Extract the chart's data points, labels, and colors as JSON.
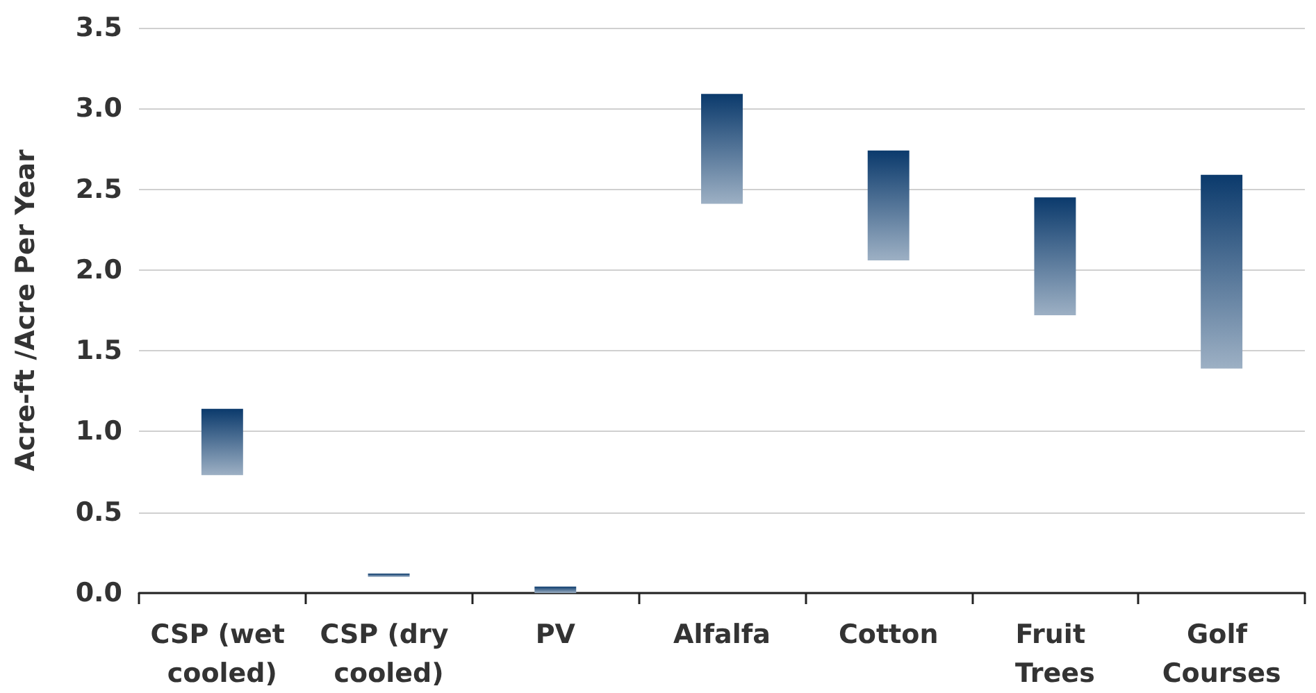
{
  "chart_data": {
    "type": "bar",
    "ylabel": "Acre-ft /Acre Per Year",
    "categories": [
      "CSP (wet cooled)",
      "CSP (dry cooled)",
      "PV",
      "Alfalfa",
      "Cotton",
      "Fruit Trees",
      "Golf Courses"
    ],
    "base": [
      0.73,
      0.1,
      0,
      2.41,
      2.06,
      1.72,
      1.39
    ],
    "values": [
      0.41,
      0.02,
      0.04,
      0.68,
      0.68,
      0.73,
      1.2
    ],
    "color": "#0b3a6c",
    "ylim": [
      0,
      3.5
    ],
    "yticks": [
      {
        "value": 0,
        "label": "0.0"
      },
      {
        "value": 0.5,
        "label": "0.5"
      },
      {
        "value": 1,
        "label": "1.0"
      },
      {
        "value": 1.5,
        "label": "1.5"
      },
      {
        "value": 2,
        "label": "2.0"
      },
      {
        "value": 2.5,
        "label": "2.5"
      },
      {
        "value": 3,
        "label": "3.0"
      },
      {
        "value": 3.5,
        "label": "3.5"
      }
    ],
    "grid": "y"
  }
}
